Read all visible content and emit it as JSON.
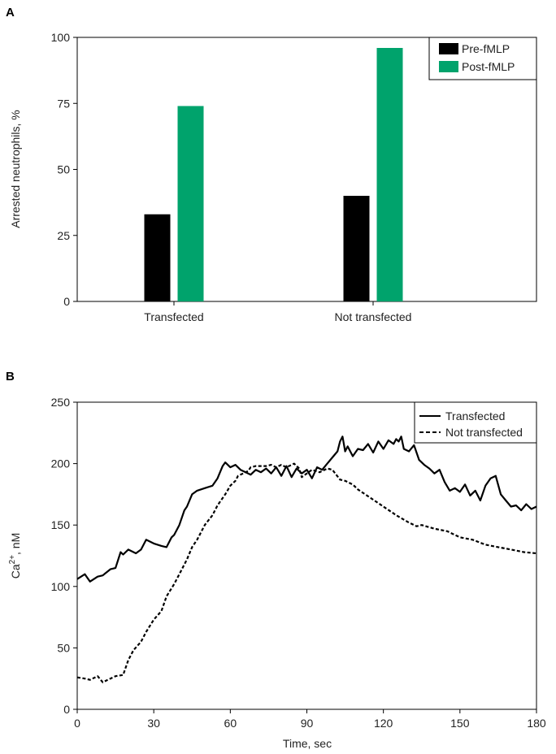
{
  "chart_data": [
    {
      "panel": "A",
      "type": "bar",
      "categories": [
        "Transfected",
        "Not transfected"
      ],
      "series": [
        {
          "name": "Pre-fMLP",
          "color": "#000000",
          "values": [
            33,
            40
          ]
        },
        {
          "name": "Post-fMLP",
          "color": "#00a36c",
          "values": [
            74,
            96
          ]
        }
      ],
      "ylabel": "Arrested neutrophils, %",
      "ylim": [
        0,
        100
      ],
      "yticks": [
        0,
        25,
        50,
        75,
        100
      ],
      "legend_position": "top-right"
    },
    {
      "panel": "B",
      "type": "line",
      "xlabel": "Time, sec",
      "ylabel": "Ca",
      "ylabel_sup": "2+",
      "ylabel_suffix": ", nM",
      "xlim": [
        0,
        180
      ],
      "ylim": [
        0,
        250
      ],
      "xticks": [
        0,
        30,
        60,
        90,
        120,
        150,
        180
      ],
      "yticks": [
        0,
        50,
        100,
        150,
        200,
        250
      ],
      "legend_position": "top-right",
      "series": [
        {
          "name": "Transfected",
          "style": "solid",
          "x": [
            0,
            3,
            5,
            8,
            10,
            13,
            15,
            17,
            18,
            20,
            23,
            25,
            27,
            30,
            33,
            35,
            37,
            38,
            40,
            42,
            43,
            45,
            47,
            50,
            53,
            55,
            57,
            58,
            60,
            62,
            64,
            66,
            68,
            70,
            72,
            74,
            76,
            78,
            80,
            82,
            84,
            86,
            88,
            90,
            92,
            94,
            96,
            98,
            100,
            102,
            103,
            104,
            105,
            106,
            108,
            110,
            112,
            114,
            116,
            118,
            120,
            122,
            124,
            125,
            126,
            127,
            128,
            130,
            132,
            134,
            136,
            138,
            140,
            142,
            144,
            146,
            148,
            150,
            152,
            154,
            156,
            158,
            160,
            162,
            164,
            166,
            168,
            170,
            172,
            174,
            176,
            178,
            180
          ],
          "y": [
            106,
            110,
            104,
            108,
            109,
            114,
            115,
            128,
            126,
            130,
            127,
            130,
            138,
            135,
            133,
            132,
            140,
            142,
            150,
            162,
            165,
            175,
            178,
            180,
            182,
            188,
            198,
            201,
            197,
            199,
            195,
            193,
            191,
            195,
            193,
            196,
            192,
            197,
            190,
            198,
            189,
            196,
            192,
            195,
            188,
            197,
            195,
            200,
            205,
            210,
            218,
            222,
            210,
            214,
            206,
            212,
            211,
            216,
            209,
            218,
            212,
            219,
            216,
            220,
            218,
            222,
            212,
            210,
            215,
            203,
            199,
            196,
            192,
            195,
            185,
            178,
            180,
            177,
            183,
            174,
            178,
            170,
            182,
            188,
            190,
            175,
            170,
            165,
            166,
            162,
            167,
            163,
            165
          ]
        },
        {
          "name": "Not transfected",
          "style": "dashed",
          "x": [
            0,
            3,
            5,
            8,
            10,
            13,
            15,
            18,
            20,
            22,
            25,
            27,
            30,
            33,
            35,
            38,
            40,
            43,
            45,
            47,
            50,
            53,
            55,
            58,
            60,
            62,
            63,
            65,
            67,
            68,
            70,
            72,
            74,
            76,
            78,
            80,
            82,
            84,
            85,
            87,
            88,
            90,
            92,
            95,
            98,
            100,
            103,
            105,
            108,
            110,
            115,
            120,
            125,
            130,
            133,
            135,
            140,
            145,
            150,
            155,
            160,
            165,
            170,
            175,
            180
          ],
          "y": [
            26,
            25,
            24,
            27,
            22,
            25,
            27,
            28,
            40,
            48,
            55,
            63,
            73,
            80,
            92,
            102,
            110,
            122,
            132,
            138,
            150,
            158,
            166,
            175,
            182,
            186,
            190,
            192,
            194,
            197,
            198,
            198,
            198,
            199,
            197,
            199,
            197,
            199,
            200,
            196,
            189,
            192,
            195,
            193,
            196,
            195,
            187,
            186,
            183,
            179,
            172,
            165,
            158,
            152,
            149,
            150,
            147,
            145,
            140,
            138,
            134,
            132,
            130,
            128,
            127
          ]
        }
      ]
    }
  ]
}
